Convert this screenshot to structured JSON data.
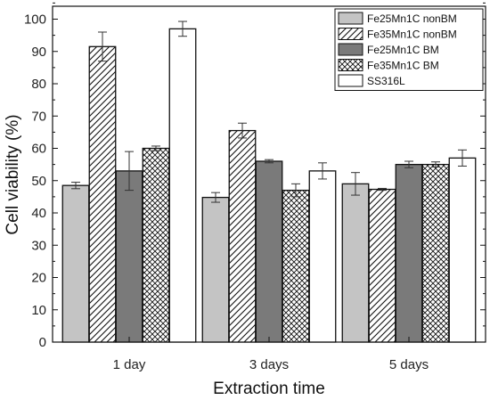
{
  "chart_data": {
    "type": "bar",
    "xlabel": "Extraction time",
    "ylabel": "Cell viability (%)",
    "ylim": [
      0,
      104
    ],
    "yticks": [
      0,
      10,
      20,
      30,
      40,
      50,
      60,
      70,
      80,
      90,
      100
    ],
    "categories": [
      "1 day",
      "3 days",
      "5 days"
    ],
    "legend_position": "top-right",
    "grid": false,
    "series": [
      {
        "name": "Fe25Mn1C nonBM",
        "values": [
          48.5,
          44.8,
          49.0
        ],
        "errors": [
          1.0,
          1.5,
          3.5
        ],
        "fill": "#c4c4c4",
        "pattern": "solid"
      },
      {
        "name": "Fe35Mn1C nonBM",
        "values": [
          91.5,
          65.5,
          47.3
        ],
        "errors": [
          4.5,
          2.3,
          0.3
        ],
        "fill": "#ffffff",
        "pattern": "diagonal"
      },
      {
        "name": "Fe25Mn1C BM",
        "values": [
          53.0,
          56.0,
          55.0
        ],
        "errors": [
          6.0,
          0.5,
          1.0
        ],
        "fill": "#7a7a7a",
        "pattern": "solid"
      },
      {
        "name": "Fe35Mn1C BM",
        "values": [
          60.0,
          47.0,
          55.0
        ],
        "errors": [
          0.7,
          2.0,
          0.8
        ],
        "fill": "#ffffff",
        "pattern": "crosshatch"
      },
      {
        "name": "SS316L",
        "values": [
          97.0,
          53.0,
          57.0
        ],
        "errors": [
          2.3,
          2.5,
          2.5
        ],
        "fill": "#ffffff",
        "pattern": "solid"
      }
    ]
  }
}
